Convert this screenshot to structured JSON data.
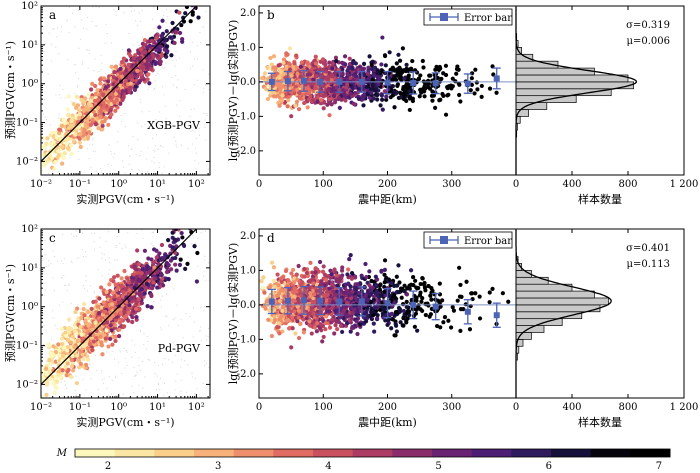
{
  "chart_data": [
    {
      "panel": "a",
      "type": "scatter",
      "annotation": "XGB-PGV",
      "xlabel": "实测PGV(cm・s⁻¹)",
      "ylabel": "预测PGV(cm・s⁻¹)",
      "xscale": "log",
      "yscale": "log",
      "xlim": [
        0.01,
        100
      ],
      "ylim": [
        0.01,
        100
      ],
      "xticks": [
        "10⁻²",
        "10⁻¹",
        "10⁰",
        "10¹",
        "10²"
      ],
      "yticks": [
        "10⁻²",
        "10⁻¹",
        "10⁰",
        "10¹",
        "10²"
      ],
      "reference_line": "y = x",
      "cluster": {
        "center_log_x": -0.3,
        "center_log_y": -0.35,
        "spread_along": 0.6,
        "spread_across": 0.25
      }
    },
    {
      "panel": "b",
      "type": "scatter",
      "xlabel": "震中距(km)",
      "ylabel": "lg(预测PGV)－lg(实测PGV)",
      "xlim": [
        0,
        400
      ],
      "ylim": [
        -2.7,
        2.2
      ],
      "xticks": [
        0,
        100,
        200,
        300
      ],
      "yticks": [
        "2.0",
        "1.0",
        "0.0",
        "-1.0",
        "-2.0"
      ],
      "legend": {
        "label": "Error bar",
        "loc": "top-right"
      },
      "error_bars": {
        "x": [
          20,
          45,
          70,
          95,
          125,
          160,
          200,
          240,
          275,
          325,
          370
        ],
        "mean": [
          0.0,
          0.02,
          0.03,
          0.0,
          0.0,
          0.0,
          -0.02,
          -0.03,
          -0.04,
          -0.05,
          0.1
        ],
        "std": [
          0.25,
          0.28,
          0.3,
          0.3,
          0.3,
          0.3,
          0.32,
          0.32,
          0.3,
          0.28,
          0.3
        ]
      }
    },
    {
      "panel": "b-hist",
      "type": "bar",
      "xlabel": "样本数量",
      "xlim": [
        0,
        1200
      ],
      "xticks": [
        0,
        400,
        800,
        "1 200"
      ],
      "stats": {
        "sigma": "σ=0.319",
        "mu": "μ=0.006"
      },
      "normal_fit": {
        "mu": 0.006,
        "sigma": 0.319,
        "peak": 860
      },
      "bins": [
        -1.6,
        -1.4,
        -1.2,
        -1.0,
        -0.8,
        -0.6,
        -0.4,
        -0.2,
        0.0,
        0.2,
        0.4,
        0.6,
        0.8,
        1.0,
        1.2,
        1.4
      ],
      "counts": [
        5,
        10,
        30,
        90,
        220,
        430,
        680,
        840,
        800,
        560,
        300,
        120,
        40,
        15,
        5
      ]
    },
    {
      "panel": "c",
      "type": "scatter",
      "annotation": "Pd-PGV",
      "xlabel": "实测PGV(cm・s⁻¹)",
      "ylabel": "预测PGV(cm・s⁻¹)",
      "xscale": "log",
      "yscale": "log",
      "xlim": [
        0.01,
        100
      ],
      "ylim": [
        0.01,
        100
      ],
      "xticks": [
        "10⁻²",
        "10⁻¹",
        "10⁰",
        "10¹",
        "10²"
      ],
      "yticks": [
        "10⁻²",
        "10⁻¹",
        "10⁰",
        "10¹",
        "10²"
      ],
      "reference_line": "y = x",
      "cluster": {
        "center_log_x": -0.3,
        "center_log_y": -0.25,
        "spread_along": 0.6,
        "spread_across": 0.33
      }
    },
    {
      "panel": "d",
      "type": "scatter",
      "xlabel": "震中距(km)",
      "ylabel": "lg(预测PGV)－lg(实测PGV)",
      "xlim": [
        0,
        400
      ],
      "ylim": [
        -2.7,
        2.2
      ],
      "xticks": [
        0,
        100,
        200,
        300
      ],
      "yticks": [
        "2.0",
        "1.0",
        "0.0",
        "-1.0",
        "-2.0"
      ],
      "legend": {
        "label": "Error bar",
        "loc": "top-right"
      },
      "error_bars": {
        "x": [
          20,
          45,
          70,
          95,
          125,
          160,
          200,
          240,
          275,
          325,
          370
        ],
        "mean": [
          0.1,
          0.12,
          0.13,
          0.12,
          0.1,
          0.1,
          0.05,
          0.0,
          -0.05,
          -0.2,
          -0.3
        ],
        "std": [
          0.35,
          0.38,
          0.4,
          0.4,
          0.4,
          0.42,
          0.42,
          0.4,
          0.38,
          0.35,
          0.35
        ]
      }
    },
    {
      "panel": "d-hist",
      "type": "bar",
      "xlabel": "样本数量",
      "xlim": [
        0,
        1200
      ],
      "xticks": [
        0,
        400,
        800,
        "1 200"
      ],
      "stats": {
        "sigma": "σ=0.401",
        "mu": "μ=0.113"
      },
      "normal_fit": {
        "mu": 0.113,
        "sigma": 0.401,
        "peak": 680
      },
      "bins": [
        -1.6,
        -1.4,
        -1.2,
        -1.0,
        -0.8,
        -0.6,
        -0.4,
        -0.2,
        0.0,
        0.2,
        0.4,
        0.6,
        0.8,
        1.0,
        1.2,
        1.4
      ],
      "counts": [
        10,
        20,
        50,
        110,
        200,
        330,
        470,
        600,
        660,
        560,
        400,
        230,
        110,
        40,
        15
      ]
    },
    {
      "panel": "colorbar",
      "type": "heatmap",
      "label": "M",
      "range": [
        1.7,
        7.1
      ],
      "ticks": [
        2,
        3,
        4,
        5,
        6,
        7
      ],
      "colors": [
        "#fcf8bd",
        "#fbe6a4",
        "#f9cf8a",
        "#f6b27a",
        "#ef8e6b",
        "#e06b63",
        "#c9505f",
        "#ac3c64",
        "#8b2d6b",
        "#6a2373",
        "#4c1f75",
        "#2f1a5e",
        "#151039",
        "#05040c",
        "#000000"
      ]
    }
  ]
}
